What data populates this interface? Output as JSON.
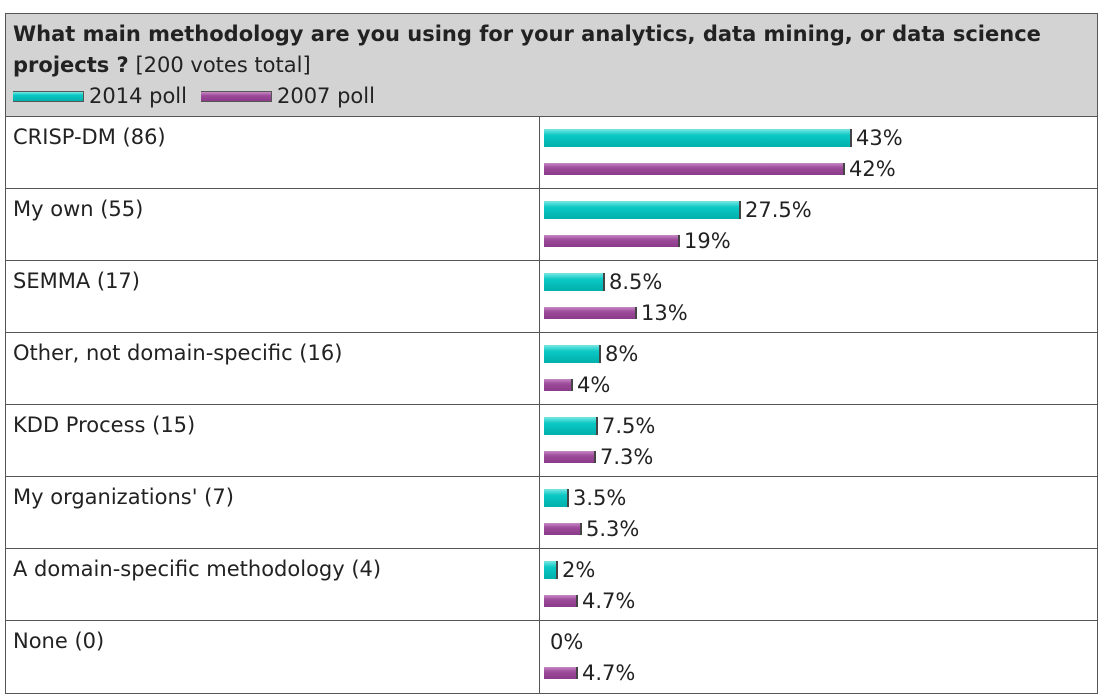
{
  "chart_data": {
    "type": "bar",
    "orientation": "horizontal",
    "title": "What main methodology are you using for your analytics, data mining, or data science projects ?",
    "subtitle": "[200 votes total]",
    "legend": [
      "2014 poll",
      "2007 poll"
    ],
    "colors": {
      "2014 poll": "#00c4c0",
      "2007 poll": "#9b4a98"
    },
    "categories": [
      "CRISP-DM (86)",
      "My own (55)",
      "SEMMA (17)",
      "Other, not domain-specific (16)",
      "KDD Process (15)",
      "My organizations' (7)",
      "A domain-specific methodology (4)",
      "None (0)"
    ],
    "series": [
      {
        "name": "2014 poll",
        "values": [
          43,
          27.5,
          8.5,
          8,
          7.5,
          3.5,
          2,
          0
        ],
        "labels": [
          "43%",
          "27.5%",
          "8.5%",
          "8%",
          "7.5%",
          "3.5%",
          "2%",
          "0%"
        ]
      },
      {
        "name": "2007 poll",
        "values": [
          42,
          19,
          13,
          4,
          7.3,
          5.3,
          4.7,
          4.7
        ],
        "labels": [
          "42%",
          "19%",
          "13%",
          "4%",
          "7.3%",
          "5.3%",
          "4.7%",
          "4.7%"
        ]
      }
    ],
    "xlim": [
      0,
      43
    ],
    "grid": false,
    "legend_placement": "top-left"
  }
}
